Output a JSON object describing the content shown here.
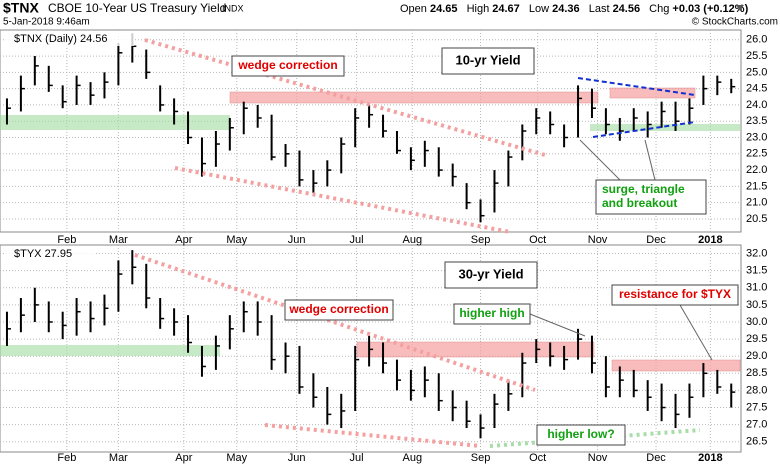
{
  "header": {
    "symbol": "$TNX",
    "name": "CBOE 10-Year US Treasury Yield",
    "exchange": "INDX",
    "timestamp": "5-Jan-2018 9:46am",
    "quote": [
      {
        "label": "Open",
        "value": 24.65
      },
      {
        "label": "High",
        "value": 24.67
      },
      {
        "label": "Low",
        "value": 24.36
      },
      {
        "label": "Last",
        "value": 24.56
      },
      {
        "label": "Chg",
        "value": "+0.03 (+0.12%)"
      }
    ],
    "copyright": "© StockCharts.com"
  },
  "chart_data": [
    {
      "type": "ohlc",
      "title": "10-yr Yield",
      "label": "$TNX (Daily) 24.56",
      "color": "#000000",
      "grid": true,
      "annotations": [
        "wedge correction",
        "surge, triangle",
        "and breakout"
      ],
      "xlim": [
        -0.5,
        52.7
      ],
      "xticks": [
        {
          "value": 4.3,
          "label": "Feb"
        },
        {
          "value": 8.0,
          "label": "Mar"
        },
        {
          "value": 12.7,
          "label": "Apr"
        },
        {
          "value": 16.5,
          "label": "May"
        },
        {
          "value": 20.8,
          "label": "Jun"
        },
        {
          "value": 25.1,
          "label": "Jul"
        },
        {
          "value": 29.1,
          "label": "Aug"
        },
        {
          "value": 34.0,
          "label": "Sep"
        },
        {
          "value": 38.1,
          "label": "Oct"
        },
        {
          "value": 42.4,
          "label": "Nov"
        },
        {
          "value": 46.6,
          "label": "Dec"
        },
        {
          "value": 50.5,
          "label": "2018"
        }
      ],
      "ylim": [
        20.1,
        26.3
      ],
      "yticks": [
        20.5,
        {
          "value": 21,
          "label": "21.0"
        },
        21.5,
        {
          "value": 22,
          "label": "22.0"
        },
        22.5,
        {
          "value": 23,
          "label": "23.0"
        },
        23.5,
        {
          "value": 24,
          "label": "24.0"
        },
        24.5,
        {
          "value": 25,
          "label": "25.0"
        },
        25.5,
        {
          "value": 26,
          "label": "26.0"
        }
      ],
      "high": [
        24.2,
        24.9,
        25.5,
        25.2,
        24.6,
        24.9,
        24.7,
        25.0,
        25.9,
        26.2,
        25.7,
        24.6,
        24.2,
        23.8,
        23.0,
        23.2,
        23.6,
        24.1,
        24.0,
        23.7,
        22.8,
        22.6,
        22.0,
        22.3,
        23.0,
        23.9,
        24.0,
        23.7,
        23.2,
        22.7,
        22.9,
        22.7,
        22.2,
        21.6,
        21.1,
        22.0,
        22.6,
        23.4,
        23.9,
        23.8,
        23.4,
        24.6,
        24.5,
        23.9,
        23.6,
        23.9,
        23.8,
        24.1,
        24.1,
        24.2,
        24.9,
        24.9,
        24.8
      ],
      "low": [
        23.4,
        23.8,
        24.6,
        24.4,
        23.9,
        24.0,
        24.0,
        24.2,
        24.6,
        25.3,
        24.8,
        23.8,
        23.4,
        22.8,
        21.8,
        22.1,
        22.6,
        23.1,
        23.3,
        22.3,
        22.1,
        21.5,
        21.3,
        21.5,
        21.9,
        22.7,
        23.3,
        23.0,
        22.5,
        22.0,
        22.1,
        21.8,
        21.5,
        20.8,
        20.4,
        20.7,
        21.5,
        22.3,
        23.1,
        23.1,
        22.7,
        23.0,
        23.6,
        23.1,
        22.9,
        23.2,
        23.0,
        23.3,
        23.2,
        23.4,
        24.0,
        24.3,
        24.36
      ],
      "close": [
        23.9,
        24.5,
        25.2,
        24.6,
        24.1,
        24.6,
        24.3,
        24.7,
        25.6,
        25.8,
        25.0,
        24.0,
        23.8,
        23.0,
        22.2,
        22.8,
        23.3,
        23.9,
        23.6,
        22.4,
        22.5,
        21.7,
        21.6,
        22.0,
        22.8,
        23.6,
        23.7,
        23.2,
        22.6,
        22.3,
        22.6,
        22.0,
        21.8,
        21.0,
        20.6,
        21.6,
        22.4,
        23.2,
        23.6,
        23.4,
        23.0,
        24.2,
        23.9,
        23.4,
        23.2,
        23.6,
        23.4,
        23.8,
        23.5,
        23.9,
        24.5,
        24.7,
        24.56
      ]
    },
    {
      "type": "ohlc",
      "title": "30-yr Yield",
      "label": "$TYX 27.95",
      "color": "#000000",
      "grid": true,
      "annotations": [
        "wedge correction",
        "higher high",
        "resistance for $TYX",
        "higher low?"
      ],
      "xlim": [
        -0.5,
        52.7
      ],
      "xticks": [
        {
          "value": 4.3,
          "label": "Feb"
        },
        {
          "value": 8.0,
          "label": "Mar"
        },
        {
          "value": 12.7,
          "label": "Apr"
        },
        {
          "value": 16.5,
          "label": "May"
        },
        {
          "value": 20.8,
          "label": "Jun"
        },
        {
          "value": 25.1,
          "label": "Jul"
        },
        {
          "value": 29.1,
          "label": "Aug"
        },
        {
          "value": 34.0,
          "label": "Sep"
        },
        {
          "value": 38.1,
          "label": "Oct"
        },
        {
          "value": 42.4,
          "label": "Nov"
        },
        {
          "value": 46.6,
          "label": "Dec"
        },
        {
          "value": 50.5,
          "label": "2018"
        }
      ],
      "ylim": [
        26.2,
        32.25
      ],
      "yticks": [
        26.5,
        {
          "value": 27,
          "label": "27.0"
        },
        27.5,
        {
          "value": 28,
          "label": "28.0"
        },
        28.5,
        {
          "value": 29,
          "label": "29.0"
        },
        29.5,
        {
          "value": 30,
          "label": "30.0"
        },
        30.5,
        {
          "value": 31,
          "label": "31.0"
        },
        31.5,
        {
          "value": 32,
          "label": "32.0"
        }
      ],
      "high": [
        30.3,
        30.7,
        31.0,
        30.6,
        30.3,
        30.7,
        30.6,
        30.8,
        31.8,
        32.1,
        31.7,
        30.7,
        30.4,
        30.2,
        29.3,
        29.6,
        30.2,
        30.6,
        30.6,
        30.2,
        29.4,
        29.3,
        28.5,
        28.1,
        27.9,
        29.3,
        29.6,
        29.4,
        28.9,
        28.6,
        28.7,
        28.5,
        28.0,
        27.7,
        27.3,
        27.9,
        28.3,
        29.1,
        29.5,
        29.4,
        29.3,
        29.8,
        29.6,
        29.0,
        28.7,
        28.6,
        28.3,
        28.2,
        27.9,
        28.2,
        28.8,
        28.6,
        28.2
      ],
      "low": [
        29.3,
        29.7,
        30.0,
        29.7,
        29.5,
        29.6,
        29.7,
        29.9,
        30.3,
        31.1,
        30.4,
        29.8,
        29.6,
        29.1,
        28.4,
        28.6,
        29.2,
        29.7,
        29.6,
        28.6,
        28.5,
        27.9,
        27.5,
        27.0,
        26.9,
        27.4,
        28.7,
        28.5,
        28.0,
        27.7,
        27.8,
        27.4,
        27.1,
        26.9,
        26.6,
        26.9,
        27.4,
        27.8,
        28.8,
        28.7,
        28.6,
        28.9,
        28.5,
        27.8,
        27.8,
        27.8,
        27.4,
        27.1,
        26.9,
        27.2,
        27.8,
        27.9,
        27.5
      ],
      "close": [
        29.8,
        30.2,
        30.5,
        30.0,
        29.9,
        30.3,
        30.1,
        30.4,
        31.4,
        31.6,
        30.7,
        30.1,
        30.0,
        29.4,
        28.7,
        29.3,
        29.8,
        30.3,
        30.0,
        28.9,
        29.0,
        28.1,
        27.8,
        27.3,
        27.4,
        28.9,
        29.2,
        28.8,
        28.3,
        28.0,
        28.3,
        27.7,
        27.5,
        27.1,
        26.9,
        27.6,
        27.9,
        28.8,
        29.2,
        29.0,
        28.9,
        29.5,
        28.8,
        28.1,
        28.3,
        28.0,
        27.8,
        27.5,
        27.3,
        27.8,
        28.5,
        28.1,
        27.95
      ]
    }
  ]
}
